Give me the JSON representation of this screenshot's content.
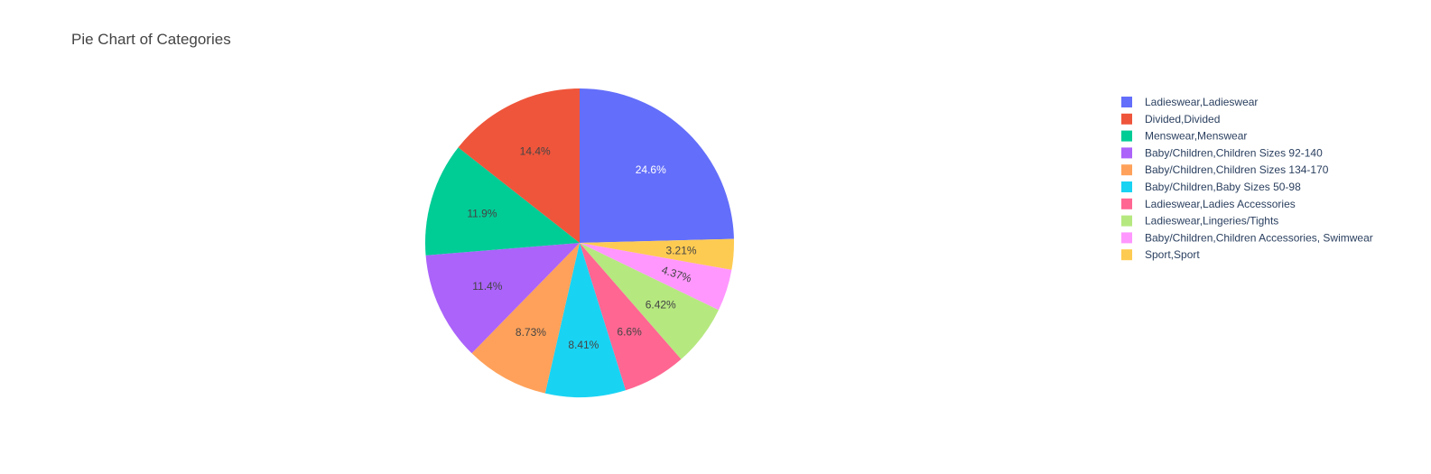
{
  "chart_data": {
    "type": "pie",
    "title": "Pie Chart of Categories",
    "legend_position": "right",
    "direction": "clockwise",
    "start": "top",
    "slices": [
      {
        "label": "Ladieswear,Ladieswear",
        "percent": 24.6,
        "text": "24.6%",
        "color": "#636efa",
        "text_color": "#ffffff"
      },
      {
        "label": "Sport,Sport",
        "percent": 3.21,
        "text": "3.21%",
        "color": "#fecb52",
        "text_color": "#444444"
      },
      {
        "label": "Baby/Children,Children Accessories, Swimwear",
        "percent": 4.37,
        "text": "4.37%",
        "color": "#ff97ff",
        "text_color": "#444444",
        "rotate": true
      },
      {
        "label": "Ladieswear,Lingeries/Tights",
        "percent": 6.42,
        "text": "6.42%",
        "color": "#b6e880",
        "text_color": "#444444"
      },
      {
        "label": "Ladieswear,Ladies Accessories",
        "percent": 6.6,
        "text": "6.6%",
        "color": "#ff6692",
        "text_color": "#444444"
      },
      {
        "label": "Baby/Children,Baby Sizes 50-98",
        "percent": 8.41,
        "text": "8.41%",
        "color": "#19d3f3",
        "text_color": "#444444"
      },
      {
        "label": "Baby/Children,Children Sizes 134-170",
        "percent": 8.73,
        "text": "8.73%",
        "color": "#ffa15a",
        "text_color": "#444444"
      },
      {
        "label": "Baby/Children,Children Sizes 92-140",
        "percent": 11.4,
        "text": "11.4%",
        "color": "#ab63fa",
        "text_color": "#444444"
      },
      {
        "label": "Menswear,Menswear",
        "percent": 11.9,
        "text": "11.9%",
        "color": "#00cc96",
        "text_color": "#444444"
      },
      {
        "label": "Divided,Divided",
        "percent": 14.4,
        "text": "14.4%",
        "color": "#ef553b",
        "text_color": "#444444"
      }
    ],
    "legend": [
      {
        "label": "Ladieswear,Ladieswear",
        "color": "#636efa"
      },
      {
        "label": "Divided,Divided",
        "color": "#ef553b"
      },
      {
        "label": "Menswear,Menswear",
        "color": "#00cc96"
      },
      {
        "label": "Baby/Children,Children Sizes 92-140",
        "color": "#ab63fa"
      },
      {
        "label": "Baby/Children,Children Sizes 134-170",
        "color": "#ffa15a"
      },
      {
        "label": "Baby/Children,Baby Sizes 50-98",
        "color": "#19d3f3"
      },
      {
        "label": "Ladieswear,Ladies Accessories",
        "color": "#ff6692"
      },
      {
        "label": "Ladieswear,Lingeries/Tights",
        "color": "#b6e880"
      },
      {
        "label": "Baby/Children,Children Accessories, Swimwear",
        "color": "#ff97ff"
      },
      {
        "label": "Sport,Sport",
        "color": "#fecb52"
      }
    ]
  }
}
